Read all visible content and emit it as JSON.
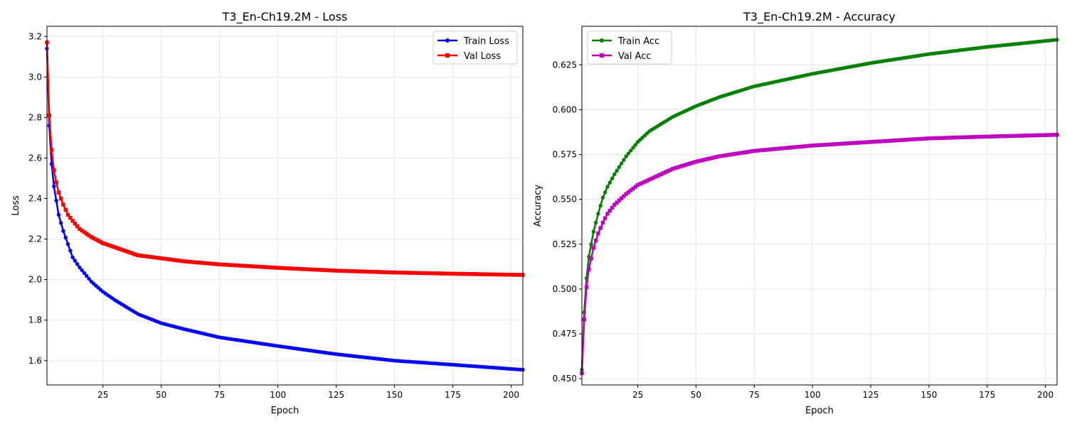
{
  "colors": {
    "train_loss": "#0000ff",
    "val_loss": "#ff0000",
    "train_acc": "#008000",
    "val_acc": "#bf00bf",
    "grid": "#e6e6e6"
  },
  "chart_data": [
    {
      "id": "loss",
      "type": "line",
      "title": "T3_En-Ch19.2M - Loss",
      "xlabel": "Epoch",
      "ylabel": "Loss",
      "xlim": [
        1,
        205
      ],
      "ylim": [
        1.48,
        3.25
      ],
      "grid": true,
      "legend_loc": "top-right",
      "xticks": [
        25,
        50,
        75,
        100,
        125,
        150,
        175,
        200
      ],
      "yticks": [
        1.6,
        1.8,
        2.0,
        2.2,
        2.4,
        2.6,
        2.8,
        3.0,
        3.2
      ],
      "ytick_labels": [
        "1.6",
        "1.8",
        "2.0",
        "2.2",
        "2.4",
        "2.6",
        "2.8",
        "3.0",
        "3.2"
      ],
      "epochs": [
        1,
        205
      ],
      "series": [
        {
          "name": "Train Loss",
          "color_key": "train_loss",
          "marker": "circle",
          "keypoints": [
            [
              1,
              3.14
            ],
            [
              2,
              2.76
            ],
            [
              3,
              2.57
            ],
            [
              4,
              2.46
            ],
            [
              5,
              2.39
            ],
            [
              6,
              2.32
            ],
            [
              8,
              2.24
            ],
            [
              10,
              2.175
            ],
            [
              12,
              2.11
            ],
            [
              15,
              2.06
            ],
            [
              20,
              1.99
            ],
            [
              25,
              1.94
            ],
            [
              30,
              1.9
            ],
            [
              40,
              1.83
            ],
            [
              50,
              1.785
            ],
            [
              60,
              1.755
            ],
            [
              75,
              1.715
            ],
            [
              100,
              1.672
            ],
            [
              125,
              1.632
            ],
            [
              150,
              1.6
            ],
            [
              175,
              1.58
            ],
            [
              205,
              1.555
            ]
          ]
        },
        {
          "name": "Val Loss",
          "color_key": "val_loss",
          "marker": "square",
          "keypoints": [
            [
              1,
              3.17
            ],
            [
              2,
              2.81
            ],
            [
              3,
              2.64
            ],
            [
              4,
              2.54
            ],
            [
              5,
              2.48
            ],
            [
              6,
              2.43
            ],
            [
              8,
              2.37
            ],
            [
              10,
              2.32
            ],
            [
              12,
              2.29
            ],
            [
              15,
              2.25
            ],
            [
              20,
              2.21
            ],
            [
              25,
              2.18
            ],
            [
              30,
              2.16
            ],
            [
              40,
              2.12
            ],
            [
              50,
              2.105
            ],
            [
              60,
              2.09
            ],
            [
              75,
              2.075
            ],
            [
              100,
              2.058
            ],
            [
              125,
              2.044
            ],
            [
              150,
              2.035
            ],
            [
              175,
              2.029
            ],
            [
              205,
              2.023
            ]
          ]
        }
      ]
    },
    {
      "id": "accuracy",
      "type": "line",
      "title": "T3_En-Ch19.2M - Accuracy",
      "xlabel": "Epoch",
      "ylabel": "Accuracy",
      "xlim": [
        1,
        205
      ],
      "ylim": [
        0.4465,
        0.6465
      ],
      "grid": true,
      "legend_loc": "top-left",
      "xticks": [
        25,
        50,
        75,
        100,
        125,
        150,
        175,
        200
      ],
      "yticks": [
        0.45,
        0.475,
        0.5,
        0.525,
        0.55,
        0.575,
        0.6,
        0.625
      ],
      "ytick_labels": [
        "0.450",
        "0.475",
        "0.500",
        "0.525",
        "0.550",
        "0.575",
        "0.600",
        "0.625"
      ],
      "epochs": [
        1,
        205
      ],
      "series": [
        {
          "name": "Train Acc",
          "color_key": "train_acc",
          "marker": "circle",
          "keypoints": [
            [
              1,
              0.455
            ],
            [
              2,
              0.487
            ],
            [
              3,
              0.506
            ],
            [
              4,
              0.518
            ],
            [
              5,
              0.525
            ],
            [
              6,
              0.532
            ],
            [
              8,
              0.542
            ],
            [
              10,
              0.551
            ],
            [
              12,
              0.557
            ],
            [
              15,
              0.564
            ],
            [
              20,
              0.574
            ],
            [
              25,
              0.582
            ],
            [
              30,
              0.588
            ],
            [
              40,
              0.596
            ],
            [
              50,
              0.602
            ],
            [
              60,
              0.607
            ],
            [
              75,
              0.613
            ],
            [
              100,
              0.62
            ],
            [
              125,
              0.626
            ],
            [
              150,
              0.631
            ],
            [
              175,
              0.635
            ],
            [
              205,
              0.639
            ]
          ]
        },
        {
          "name": "Val Acc",
          "color_key": "val_acc",
          "marker": "square",
          "keypoints": [
            [
              1,
              0.453
            ],
            [
              2,
              0.483
            ],
            [
              3,
              0.501
            ],
            [
              4,
              0.511
            ],
            [
              5,
              0.517
            ],
            [
              6,
              0.523
            ],
            [
              8,
              0.531
            ],
            [
              10,
              0.537
            ],
            [
              12,
              0.542
            ],
            [
              15,
              0.547
            ],
            [
              20,
              0.553
            ],
            [
              25,
              0.558
            ],
            [
              30,
              0.561
            ],
            [
              40,
              0.567
            ],
            [
              50,
              0.571
            ],
            [
              60,
              0.574
            ],
            [
              75,
              0.577
            ],
            [
              100,
              0.58
            ],
            [
              125,
              0.582
            ],
            [
              150,
              0.584
            ],
            [
              175,
              0.585
            ],
            [
              205,
              0.586
            ]
          ]
        }
      ]
    }
  ]
}
